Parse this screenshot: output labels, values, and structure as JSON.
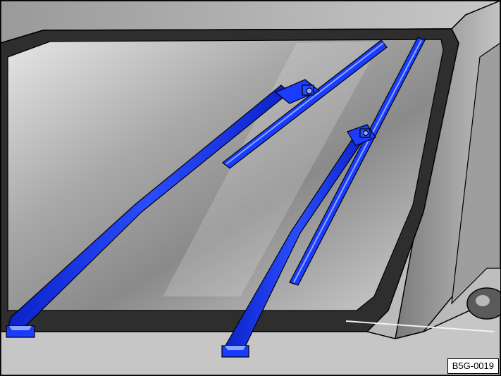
{
  "figure": {
    "code": "B5G-0019",
    "subject": "windshield-wipers",
    "colors": {
      "wiper": "#1a3cff",
      "wiper_highlight": "#8fa6ff",
      "wiper_shadow": "#0a1f9e",
      "glass_light": "#d8d8d8",
      "glass_dark": "#5a5a5a",
      "body": "#bdbdbd",
      "outline": "#000000"
    }
  }
}
